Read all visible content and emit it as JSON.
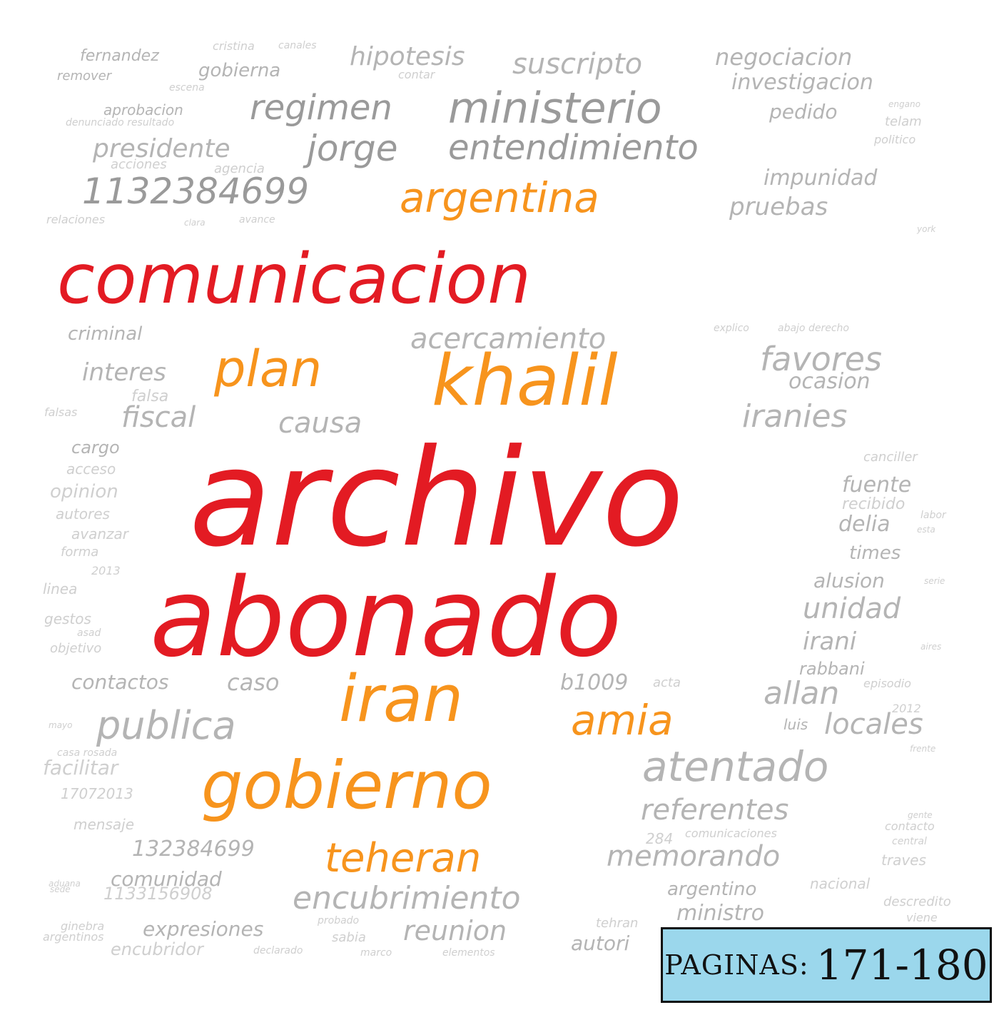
{
  "colors": {
    "red": "#e31b23",
    "orange": "#f7941d",
    "gray_dark": "#9a9a9a",
    "gray": "#b4b4b4",
    "gray_light": "#cfcfcf"
  },
  "badge": {
    "label": "PAGINAS:",
    "pages": "171-180"
  },
  "words": [
    {
      "t": "comunicacion",
      "c": "red"
    },
    {
      "t": "archivo",
      "c": "red"
    },
    {
      "t": "abonado",
      "c": "red"
    },
    {
      "t": "khalil",
      "c": "orange"
    },
    {
      "t": "iran",
      "c": "orange"
    },
    {
      "t": "gobierno",
      "c": "orange"
    },
    {
      "t": "argentina",
      "c": "orange"
    },
    {
      "t": "plan",
      "c": "orange"
    },
    {
      "t": "amia",
      "c": "orange"
    },
    {
      "t": "teheran",
      "c": "orange"
    },
    {
      "t": "ministerio",
      "c": "gray_dark"
    },
    {
      "t": "entendimiento",
      "c": "gray_dark"
    },
    {
      "t": "jorge",
      "c": "gray_dark"
    },
    {
      "t": "1132384699",
      "c": "gray_dark"
    },
    {
      "t": "regimen",
      "c": "gray_dark"
    },
    {
      "t": "presidente",
      "c": "gray"
    },
    {
      "t": "suscripto",
      "c": "gray"
    },
    {
      "t": "hipotesis",
      "c": "gray"
    },
    {
      "t": "negociacion",
      "c": "gray"
    },
    {
      "t": "investigacion",
      "c": "gray"
    },
    {
      "t": "pedido",
      "c": "gray"
    },
    {
      "t": "impunidad",
      "c": "gray"
    },
    {
      "t": "pruebas",
      "c": "gray"
    },
    {
      "t": "fernandez",
      "c": "gray"
    },
    {
      "t": "gobierna",
      "c": "gray"
    },
    {
      "t": "remover",
      "c": "gray"
    },
    {
      "t": "aprobacion",
      "c": "gray"
    },
    {
      "t": "acciones",
      "c": "gray_light"
    },
    {
      "t": "relaciones",
      "c": "gray_light"
    },
    {
      "t": "avance",
      "c": "gray_light"
    },
    {
      "t": "acercamiento",
      "c": "gray"
    },
    {
      "t": "favores",
      "c": "gray"
    },
    {
      "t": "ocasion",
      "c": "gray"
    },
    {
      "t": "iranies",
      "c": "gray"
    },
    {
      "t": "criminal",
      "c": "gray"
    },
    {
      "t": "interes",
      "c": "gray"
    },
    {
      "t": "fiscal",
      "c": "gray"
    },
    {
      "t": "causa",
      "c": "gray"
    },
    {
      "t": "cargo",
      "c": "gray"
    },
    {
      "t": "acceso",
      "c": "gray_light"
    },
    {
      "t": "opinion",
      "c": "gray_light"
    },
    {
      "t": "autores",
      "c": "gray_light"
    },
    {
      "t": "avanzar",
      "c": "gray_light"
    },
    {
      "t": "forma",
      "c": "gray_light"
    },
    {
      "t": "linea",
      "c": "gray_light"
    },
    {
      "t": "gestos",
      "c": "gray_light"
    },
    {
      "t": "objetivo",
      "c": "gray_light"
    },
    {
      "t": "canciller",
      "c": "gray_light"
    },
    {
      "t": "fuente",
      "c": "gray"
    },
    {
      "t": "recibido",
      "c": "gray_light"
    },
    {
      "t": "delia",
      "c": "gray"
    },
    {
      "t": "times",
      "c": "gray"
    },
    {
      "t": "alusion",
      "c": "gray"
    },
    {
      "t": "unidad",
      "c": "gray"
    },
    {
      "t": "irani",
      "c": "gray"
    },
    {
      "t": "rabbani",
      "c": "gray"
    },
    {
      "t": "allan",
      "c": "gray"
    },
    {
      "t": "episodio",
      "c": "gray_light"
    },
    {
      "t": "locales",
      "c": "gray"
    },
    {
      "t": "luis",
      "c": "gray"
    },
    {
      "t": "b1009",
      "c": "gray"
    },
    {
      "t": "acta",
      "c": "gray_light"
    },
    {
      "t": "contactos",
      "c": "gray"
    },
    {
      "t": "caso",
      "c": "gray"
    },
    {
      "t": "publica",
      "c": "gray"
    },
    {
      "t": "atentado",
      "c": "gray"
    },
    {
      "t": "referentes",
      "c": "gray"
    },
    {
      "t": "facilitar",
      "c": "gray_light"
    },
    {
      "t": "17072013",
      "c": "gray_light"
    },
    {
      "t": "mensaje",
      "c": "gray_light"
    },
    {
      "t": "132384699",
      "c": "gray"
    },
    {
      "t": "comunidad",
      "c": "gray"
    },
    {
      "t": "1133156908",
      "c": "gray_light"
    },
    {
      "t": "encubrimiento",
      "c": "gray"
    },
    {
      "t": "memorando",
      "c": "gray"
    },
    {
      "t": "argentino",
      "c": "gray"
    },
    {
      "t": "nacional",
      "c": "gray_light"
    },
    {
      "t": "traves",
      "c": "gray_light"
    },
    {
      "t": "ministro",
      "c": "gray"
    },
    {
      "t": "descredito",
      "c": "gray_light"
    },
    {
      "t": "expresiones",
      "c": "gray"
    },
    {
      "t": "reunion",
      "c": "gray"
    },
    {
      "t": "encubridor",
      "c": "gray_light"
    },
    {
      "t": "sabia",
      "c": "gray_light"
    },
    {
      "t": "tehran",
      "c": "gray_light"
    },
    {
      "t": "autori",
      "c": "gray"
    },
    {
      "t": "comunicaciones",
      "c": "gray_light"
    },
    {
      "t": "contacto",
      "c": "gray_light"
    },
    {
      "t": "central",
      "c": "gray_light"
    },
    {
      "t": "ginebra",
      "c": "gray_light"
    },
    {
      "t": "argentinos",
      "c": "gray_light"
    },
    {
      "t": "probado",
      "c": "gray_light"
    },
    {
      "t": "cristina",
      "c": "gray_light"
    },
    {
      "t": "canales",
      "c": "gray_light"
    },
    {
      "t": "contar",
      "c": "gray_light"
    },
    {
      "t": "escena",
      "c": "gray_light"
    },
    {
      "t": "telam",
      "c": "gray_light"
    },
    {
      "t": "politico",
      "c": "gray_light"
    },
    {
      "t": "agencia",
      "c": "gray_light"
    },
    {
      "t": "clara",
      "c": "gray_light"
    },
    {
      "t": "falsa",
      "c": "gray_light"
    },
    {
      "t": "falsas",
      "c": "gray_light"
    },
    {
      "t": "asad",
      "c": "gray_light"
    },
    {
      "t": "mayo",
      "c": "gray_light"
    },
    {
      "t": "explico",
      "c": "gray_light"
    },
    {
      "t": "abajo derecho",
      "c": "gray_light"
    },
    {
      "t": "denunciado resultado",
      "c": "gray_light"
    },
    {
      "t": "engano",
      "c": "gray_light"
    },
    {
      "t": "viene",
      "c": "gray_light"
    },
    {
      "t": "gente",
      "c": "gray_light"
    },
    {
      "t": "frente",
      "c": "gray_light"
    },
    {
      "t": "aduana",
      "c": "gray_light"
    },
    {
      "t": "sede",
      "c": "gray_light"
    },
    {
      "t": "2013",
      "c": "gray_light"
    },
    {
      "t": "2012",
      "c": "gray_light"
    },
    {
      "t": "york",
      "c": "gray_light"
    },
    {
      "t": "labor",
      "c": "gray_light"
    },
    {
      "t": "esta",
      "c": "gray_light"
    },
    {
      "t": "serie",
      "c": "gray_light"
    },
    {
      "t": "aires",
      "c": "gray_light"
    },
    {
      "t": "marco",
      "c": "gray_light"
    },
    {
      "t": "elementos",
      "c": "gray_light"
    },
    {
      "t": "declarado",
      "c": "gray_light"
    },
    {
      "t": "casa rosada",
      "c": "gray_light"
    },
    {
      "t": "284",
      "c": "gray_light"
    }
  ]
}
